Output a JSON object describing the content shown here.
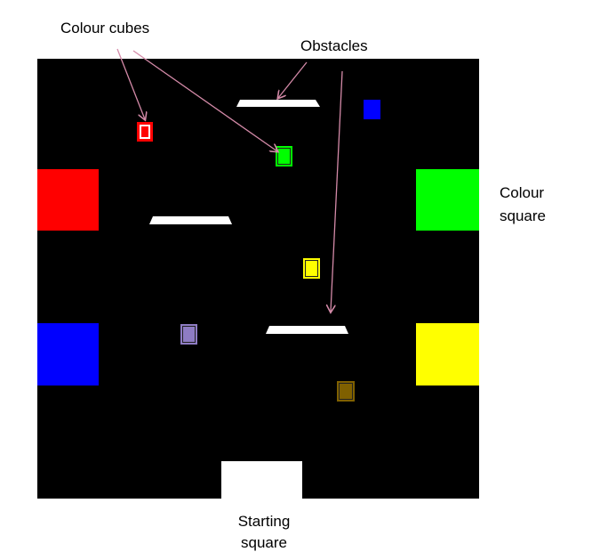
{
  "labels": {
    "colour_cubes": "Colour cubes",
    "obstacles": "Obstacles",
    "colour_square_line1": "Colour",
    "colour_square_line2": "square",
    "starting_square_line1": "Starting",
    "starting_square_line2": "square"
  },
  "colors": {
    "arena": "#000000",
    "obstacle": "#ffffff",
    "starting_square": "#ffffff",
    "arrow": "#d48aa8",
    "red": "#ff0000",
    "green": "#00ff00",
    "blue": "#0000ff",
    "yellow": "#ffff00",
    "purple": "#8e7cc3",
    "brown": "#7f6000"
  },
  "colour_squares": [
    "red",
    "green",
    "blue",
    "yellow"
  ],
  "colour_cubes": [
    "red",
    "blue",
    "green",
    "yellow",
    "purple",
    "brown"
  ]
}
